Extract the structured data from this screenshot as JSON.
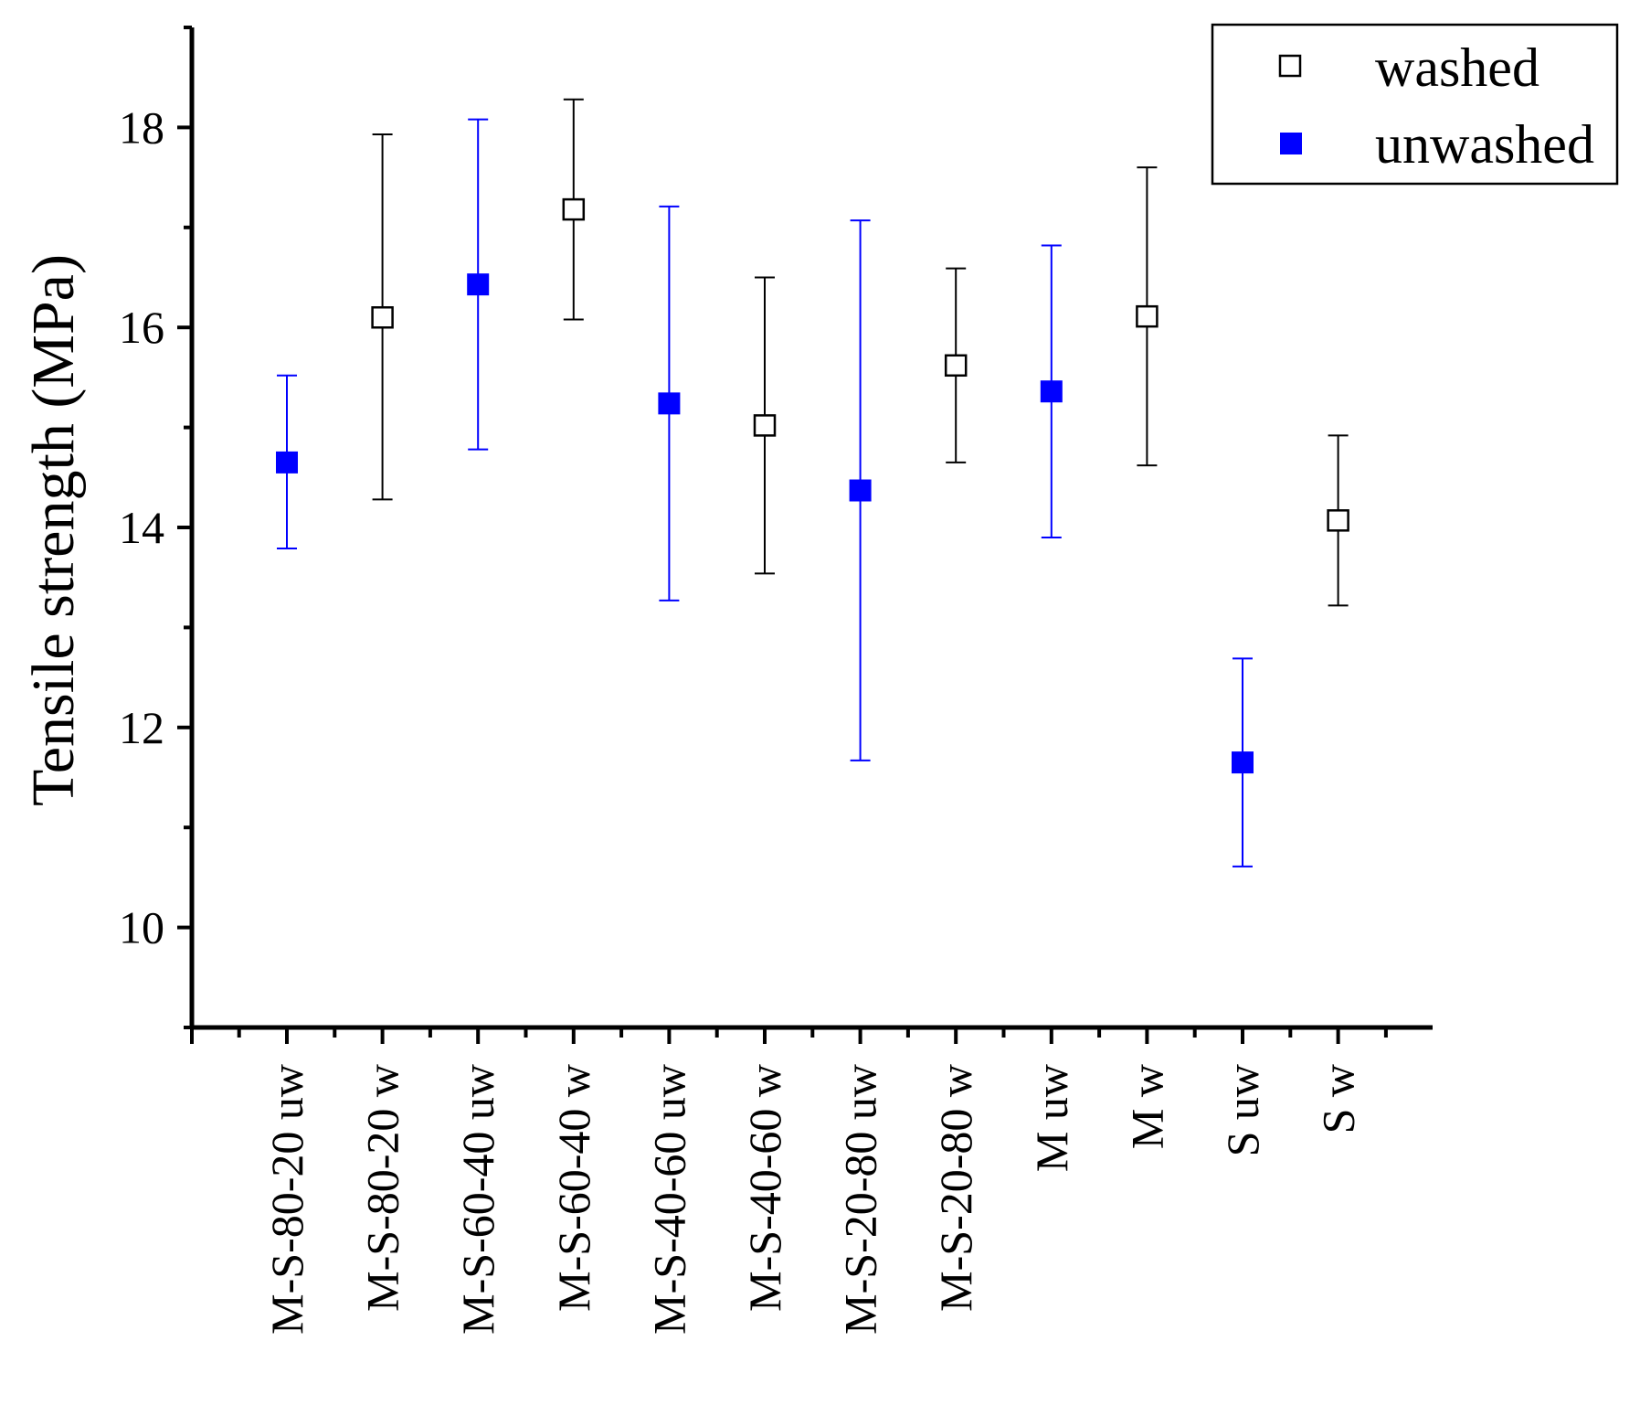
{
  "chart_data": {
    "type": "scatter",
    "ylabel": "Tensile strength (MPa)",
    "xlabel": "",
    "ylim": [
      9,
      19
    ],
    "yticks": [
      10,
      12,
      14,
      16,
      18
    ],
    "categories": [
      "M-S-80-20 uw",
      "M-S-80-20 w",
      "M-S-60-40 uw",
      "M-S-60-40 w",
      "M-S-40-60 uw",
      "M-S-40-60 w",
      "M-S-20-80 uw",
      "M-S-20-80 w",
      "M uw",
      "M w",
      "S uw",
      "S w"
    ],
    "series": [
      {
        "name": "washed",
        "color": "#000000",
        "marker": "open-square",
        "points": [
          {
            "category": "M-S-80-20 w",
            "value": 16.1,
            "low": 14.28,
            "high": 17.93
          },
          {
            "category": "M-S-60-40 w",
            "value": 17.18,
            "low": 16.08,
            "high": 18.28
          },
          {
            "category": "M-S-40-60 w",
            "value": 15.02,
            "low": 13.54,
            "high": 16.5
          },
          {
            "category": "M-S-20-80 w",
            "value": 15.62,
            "low": 14.65,
            "high": 16.59
          },
          {
            "category": "M w",
            "value": 16.11,
            "low": 14.62,
            "high": 17.6
          },
          {
            "category": "S w",
            "value": 14.07,
            "low": 13.22,
            "high": 14.92
          }
        ]
      },
      {
        "name": "unwashed",
        "color": "#0000ff",
        "marker": "filled-square",
        "points": [
          {
            "category": "M-S-80-20 uw",
            "value": 14.65,
            "low": 13.79,
            "high": 15.52
          },
          {
            "category": "M-S-60-40 uw",
            "value": 16.43,
            "low": 14.78,
            "high": 18.08
          },
          {
            "category": "M-S-40-60 uw",
            "value": 15.24,
            "low": 13.27,
            "high": 17.21
          },
          {
            "category": "M-S-20-80 uw",
            "value": 14.37,
            "low": 11.67,
            "high": 17.07
          },
          {
            "category": "M uw",
            "value": 15.36,
            "low": 13.9,
            "high": 16.82
          },
          {
            "category": "S uw",
            "value": 11.65,
            "low": 10.61,
            "high": 12.69
          }
        ]
      }
    ],
    "legend": {
      "position": "top-right",
      "entries": [
        {
          "label": "washed",
          "color": "#000000",
          "marker": "open-square"
        },
        {
          "label": "unwashed",
          "color": "#0000ff",
          "marker": "filled-square"
        }
      ]
    }
  }
}
